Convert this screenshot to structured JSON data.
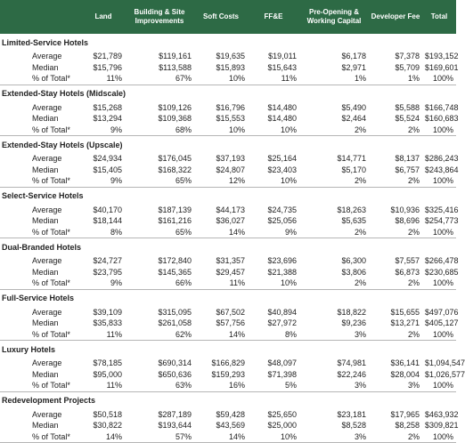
{
  "header": {
    "columns": [
      "Land",
      "Building & Site Improvements",
      "Soft Costs",
      "FF&E",
      "Pre-Opening & Working Capital",
      "Developer Fee",
      "Total"
    ]
  },
  "sections": [
    {
      "title": "Limited-Service Hotels",
      "rows": [
        [
          "Average",
          "$21,789",
          "$119,161",
          "$19,635",
          "$19,011",
          "$6,178",
          "$7,378",
          "$193,152"
        ],
        [
          "Median",
          "$15,796",
          "$113,588",
          "$15,893",
          "$15,643",
          "$2,971",
          "$5,709",
          "$169,601"
        ],
        [
          "% of Total*",
          "11%",
          "67%",
          "10%",
          "11%",
          "1%",
          "1%",
          "100%"
        ]
      ]
    },
    {
      "title": "Extended-Stay Hotels (Midscale)",
      "rows": [
        [
          "Average",
          "$15,268",
          "$109,126",
          "$16,796",
          "$14,480",
          "$5,490",
          "$5,588",
          "$166,748"
        ],
        [
          "Median",
          "$13,294",
          "$109,368",
          "$15,553",
          "$14,480",
          "$2,464",
          "$5,524",
          "$160,683"
        ],
        [
          "% of Total*",
          "9%",
          "68%",
          "10%",
          "10%",
          "2%",
          "2%",
          "100%"
        ]
      ]
    },
    {
      "title": "Extended-Stay Hotels (Upscale)",
      "rows": [
        [
          "Average",
          "$24,934",
          "$176,045",
          "$37,193",
          "$25,164",
          "$14,771",
          "$8,137",
          "$286,243"
        ],
        [
          "Median",
          "$15,405",
          "$168,322",
          "$24,807",
          "$23,403",
          "$5,170",
          "$6,757",
          "$243,864"
        ],
        [
          "% of Total*",
          "9%",
          "65%",
          "12%",
          "10%",
          "2%",
          "2%",
          "100%"
        ]
      ]
    },
    {
      "title": "Select-Service Hotels",
      "rows": [
        [
          "Average",
          "$40,170",
          "$187,139",
          "$44,173",
          "$24,735",
          "$18,263",
          "$10,936",
          "$325,416"
        ],
        [
          "Median",
          "$18,144",
          "$161,216",
          "$36,027",
          "$25,056",
          "$5,635",
          "$8,696",
          "$254,773"
        ],
        [
          "% of Total*",
          "8%",
          "65%",
          "14%",
          "9%",
          "2%",
          "2%",
          "100%"
        ]
      ]
    },
    {
      "title": "Dual-Branded Hotels",
      "rows": [
        [
          "Average",
          "$24,727",
          "$172,840",
          "$31,357",
          "$23,696",
          "$6,300",
          "$7,557",
          "$266,478"
        ],
        [
          "Median",
          "$23,795",
          "$145,365",
          "$29,457",
          "$21,388",
          "$3,806",
          "$6,873",
          "$230,685"
        ],
        [
          "% of Total*",
          "9%",
          "66%",
          "11%",
          "10%",
          "2%",
          "2%",
          "100%"
        ]
      ]
    },
    {
      "title": "Full-Service Hotels",
      "rows": [
        [
          "Average",
          "$39,109",
          "$315,095",
          "$67,502",
          "$40,894",
          "$18,822",
          "$15,655",
          "$497,076"
        ],
        [
          "Median",
          "$35,833",
          "$261,058",
          "$57,756",
          "$27,972",
          "$9,236",
          "$13,271",
          "$405,127"
        ],
        [
          "% of Total*",
          "11%",
          "62%",
          "14%",
          "8%",
          "3%",
          "2%",
          "100%"
        ]
      ]
    },
    {
      "title": "Luxury Hotels",
      "rows": [
        [
          "Average",
          "$78,185",
          "$690,314",
          "$166,829",
          "$48,097",
          "$74,981",
          "$36,141",
          "$1,094,547"
        ],
        [
          "Median",
          "$95,000",
          "$650,636",
          "$159,293",
          "$71,398",
          "$22,246",
          "$28,004",
          "$1,026,577"
        ],
        [
          "% of Total*",
          "11%",
          "63%",
          "16%",
          "5%",
          "3%",
          "3%",
          "100%"
        ]
      ]
    },
    {
      "title": "Redevelopment Projects",
      "rows": [
        [
          "Average",
          "$50,518",
          "$287,189",
          "$59,428",
          "$25,650",
          "$23,181",
          "$17,965",
          "$463,932"
        ],
        [
          "Median",
          "$30,822",
          "$193,644",
          "$43,569",
          "$25,000",
          "$8,528",
          "$8,258",
          "$309,821"
        ],
        [
          "% of Total*",
          "14%",
          "57%",
          "14%",
          "10%",
          "3%",
          "2%",
          "100%"
        ]
      ]
    }
  ]
}
